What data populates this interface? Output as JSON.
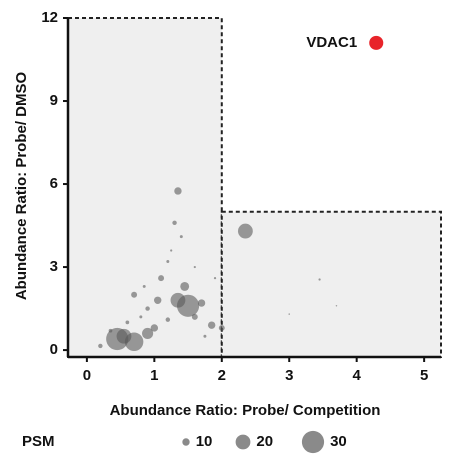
{
  "chart_data": {
    "type": "bubble",
    "x_label": "Abundance Ratio: Probe/ Competition",
    "y_label": "Abundance Ratio: Probe/ DMSO",
    "xlim": [
      -0.28,
      5.25
    ],
    "ylim": [
      -0.25,
      12
    ],
    "xticks": [
      0,
      1,
      2,
      3,
      4,
      5
    ],
    "yticks": [
      0,
      3,
      6,
      9,
      12
    ],
    "x_cutoff": 2,
    "y_cutoff": 5,
    "region_color": "#efefef",
    "series": [
      {
        "color": "#5a5a5a",
        "x": [
          1.35,
          2.35,
          1.3,
          1.4,
          1.2,
          1.1,
          1.45,
          1.35,
          1.5,
          1.7,
          1.05,
          0.7,
          0.9,
          1.6,
          1.2,
          1.0,
          0.9,
          0.55,
          0.45,
          0.7,
          0.2,
          0.35,
          1.85,
          2.0,
          3.45,
          3.0,
          3.7,
          0.8,
          1.9,
          1.25,
          0.6,
          1.6,
          1.75,
          0.85
        ],
        "y": [
          5.75,
          4.3,
          4.6,
          4.1,
          3.2,
          2.6,
          2.3,
          1.8,
          1.6,
          1.7,
          1.8,
          2.0,
          1.5,
          1.2,
          1.1,
          0.8,
          0.6,
          0.5,
          0.4,
          0.3,
          0.15,
          0.7,
          0.9,
          0.8,
          2.55,
          1.3,
          1.6,
          1.2,
          2.6,
          3.6,
          1.0,
          3.0,
          0.5,
          2.3
        ],
        "size": [
          10,
          20,
          6,
          4,
          4,
          8,
          12,
          20,
          30,
          10,
          10,
          8,
          6,
          8,
          6,
          10,
          15,
          20,
          30,
          25,
          6,
          5,
          10,
          8,
          3,
          2,
          2,
          4,
          3,
          3,
          5,
          3,
          4,
          4
        ]
      },
      {
        "color": "#e8242a",
        "x": [
          4.29
        ],
        "y": [
          11.1
        ],
        "size": [
          19
        ],
        "label": "VDAC1"
      }
    ],
    "size_legend": {
      "title": "PSM",
      "values": [
        10,
        20,
        30
      ],
      "color": "#8a8a8a"
    }
  }
}
